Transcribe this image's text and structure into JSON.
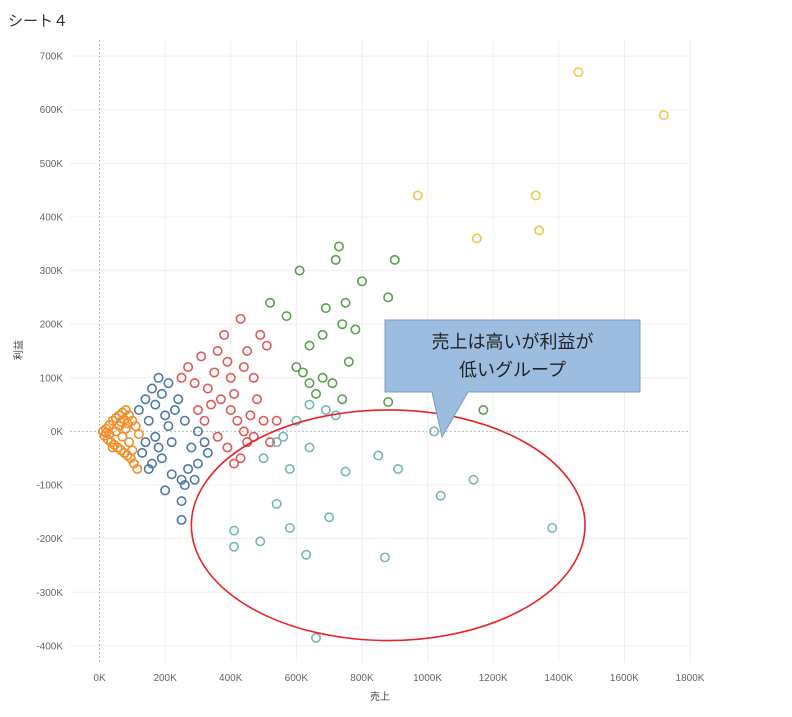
{
  "sheet": {
    "title": "シート４"
  },
  "chart_data": {
    "type": "scatter",
    "xlabel": "売上",
    "ylabel": "利益",
    "xlim": [
      -90000,
      1800000
    ],
    "ylim": [
      -430000,
      730000
    ],
    "x_ticks": [
      0,
      200000,
      400000,
      600000,
      800000,
      1000000,
      1200000,
      1400000,
      1600000,
      1800000
    ],
    "x_tick_labels": [
      "0K",
      "200K",
      "400K",
      "600K",
      "800K",
      "1000K",
      "1200K",
      "1400K",
      "1600K",
      "1800K"
    ],
    "y_ticks": [
      700000,
      600000,
      500000,
      400000,
      300000,
      200000,
      100000,
      0,
      -100000,
      -200000,
      -300000,
      -400000
    ],
    "y_tick_labels": [
      "700K",
      "600K",
      "500K",
      "400K",
      "300K",
      "200K",
      "100K",
      "0K",
      "-100K",
      "-200K",
      "-300K",
      "-400K"
    ],
    "grid": true,
    "marker": "hollow-circle",
    "annotation": {
      "lines": [
        "売上は高いが利益が",
        "低いグループ"
      ],
      "box_color": "#9DBDE0",
      "ellipse_color": "#E8232B"
    },
    "series": [
      {
        "color": "#F28E2B",
        "points": [
          [
            10000,
            0
          ],
          [
            20000,
            5000
          ],
          [
            15000,
            -8000
          ],
          [
            30000,
            12000
          ],
          [
            25000,
            -15000
          ],
          [
            40000,
            20000
          ],
          [
            35000,
            -20000
          ],
          [
            50000,
            25000
          ],
          [
            45000,
            -25000
          ],
          [
            60000,
            30000
          ],
          [
            55000,
            -30000
          ],
          [
            70000,
            35000
          ],
          [
            65000,
            -35000
          ],
          [
            80000,
            40000
          ],
          [
            75000,
            -40000
          ],
          [
            90000,
            30000
          ],
          [
            85000,
            -45000
          ],
          [
            100000,
            20000
          ],
          [
            95000,
            -50000
          ],
          [
            110000,
            10000
          ],
          [
            105000,
            -60000
          ],
          [
            120000,
            -5000
          ],
          [
            115000,
            -70000
          ],
          [
            30000,
            -5000
          ],
          [
            60000,
            10000
          ],
          [
            70000,
            -10000
          ],
          [
            40000,
            -30000
          ],
          [
            80000,
            5000
          ],
          [
            90000,
            -20000
          ],
          [
            100000,
            -35000
          ],
          [
            50000,
            0
          ],
          [
            20000,
            -3000
          ],
          [
            65000,
            18000
          ],
          [
            75000,
            22000
          ],
          [
            85000,
            15000
          ]
        ]
      },
      {
        "color": "#4E79A7",
        "points": [
          [
            120000,
            40000
          ],
          [
            140000,
            60000
          ],
          [
            160000,
            80000
          ],
          [
            180000,
            100000
          ],
          [
            150000,
            20000
          ],
          [
            170000,
            -10000
          ],
          [
            200000,
            30000
          ],
          [
            220000,
            -20000
          ],
          [
            130000,
            -40000
          ],
          [
            160000,
            -60000
          ],
          [
            190000,
            -50000
          ],
          [
            210000,
            10000
          ],
          [
            240000,
            60000
          ],
          [
            260000,
            20000
          ],
          [
            280000,
            -30000
          ],
          [
            250000,
            -90000
          ],
          [
            270000,
            -70000
          ],
          [
            300000,
            -60000
          ],
          [
            330000,
            -40000
          ],
          [
            200000,
            -110000
          ],
          [
            250000,
            -130000
          ],
          [
            250000,
            -165000
          ],
          [
            140000,
            -20000
          ],
          [
            180000,
            -30000
          ],
          [
            230000,
            40000
          ],
          [
            300000,
            0
          ],
          [
            320000,
            -20000
          ],
          [
            190000,
            70000
          ],
          [
            210000,
            90000
          ],
          [
            170000,
            50000
          ],
          [
            150000,
            -70000
          ],
          [
            220000,
            -80000
          ],
          [
            290000,
            -90000
          ],
          [
            260000,
            -100000
          ]
        ]
      },
      {
        "color": "#E15759",
        "points": [
          [
            250000,
            100000
          ],
          [
            270000,
            120000
          ],
          [
            290000,
            90000
          ],
          [
            310000,
            140000
          ],
          [
            330000,
            80000
          ],
          [
            350000,
            110000
          ],
          [
            370000,
            60000
          ],
          [
            390000,
            130000
          ],
          [
            410000,
            70000
          ],
          [
            430000,
            210000
          ],
          [
            450000,
            150000
          ],
          [
            470000,
            100000
          ],
          [
            490000,
            180000
          ],
          [
            510000,
            160000
          ],
          [
            380000,
            180000
          ],
          [
            400000,
            40000
          ],
          [
            420000,
            20000
          ],
          [
            440000,
            0
          ],
          [
            460000,
            30000
          ],
          [
            480000,
            60000
          ],
          [
            500000,
            20000
          ],
          [
            300000,
            40000
          ],
          [
            320000,
            20000
          ],
          [
            340000,
            50000
          ],
          [
            360000,
            -10000
          ],
          [
            390000,
            -30000
          ],
          [
            410000,
            -60000
          ],
          [
            430000,
            -50000
          ],
          [
            450000,
            -20000
          ],
          [
            470000,
            -10000
          ],
          [
            520000,
            -20000
          ],
          [
            540000,
            20000
          ],
          [
            400000,
            100000
          ],
          [
            360000,
            150000
          ],
          [
            440000,
            120000
          ]
        ]
      },
      {
        "color": "#59A14F",
        "points": [
          [
            520000,
            240000
          ],
          [
            610000,
            300000
          ],
          [
            570000,
            215000
          ],
          [
            730000,
            345000
          ],
          [
            900000,
            320000
          ],
          [
            800000,
            280000
          ],
          [
            750000,
            240000
          ],
          [
            690000,
            230000
          ],
          [
            740000,
            200000
          ],
          [
            780000,
            190000
          ],
          [
            680000,
            180000
          ],
          [
            640000,
            160000
          ],
          [
            600000,
            120000
          ],
          [
            620000,
            110000
          ],
          [
            640000,
            90000
          ],
          [
            660000,
            70000
          ],
          [
            680000,
            100000
          ],
          [
            710000,
            90000
          ],
          [
            760000,
            130000
          ],
          [
            720000,
            320000
          ],
          [
            880000,
            250000
          ],
          [
            880000,
            55000
          ],
          [
            1170000,
            40000
          ],
          [
            740000,
            60000
          ]
        ]
      },
      {
        "color": "#EDC948",
        "points": [
          [
            1460000,
            670000
          ],
          [
            1720000,
            590000
          ],
          [
            970000,
            440000
          ],
          [
            1330000,
            440000
          ],
          [
            1150000,
            360000
          ],
          [
            1340000,
            375000
          ]
        ]
      },
      {
        "color": "#76B7B2",
        "points": [
          [
            600000,
            20000
          ],
          [
            640000,
            50000
          ],
          [
            690000,
            40000
          ],
          [
            720000,
            30000
          ],
          [
            540000,
            -20000
          ],
          [
            560000,
            -10000
          ],
          [
            640000,
            -30000
          ],
          [
            500000,
            -50000
          ],
          [
            580000,
            -70000
          ],
          [
            750000,
            -75000
          ],
          [
            850000,
            -45000
          ],
          [
            910000,
            -70000
          ],
          [
            1040000,
            -120000
          ],
          [
            1140000,
            -90000
          ],
          [
            1380000,
            -180000
          ],
          [
            540000,
            -135000
          ],
          [
            580000,
            -180000
          ],
          [
            700000,
            -160000
          ],
          [
            410000,
            -185000
          ],
          [
            410000,
            -215000
          ],
          [
            490000,
            -205000
          ],
          [
            630000,
            -230000
          ],
          [
            870000,
            -235000
          ],
          [
            660000,
            -385000
          ],
          [
            1020000,
            0
          ]
        ]
      }
    ]
  }
}
